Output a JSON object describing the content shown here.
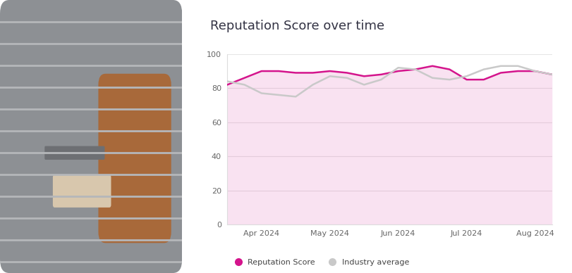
{
  "chart_data": {
    "type": "line",
    "title": "Reputation Score over time",
    "categories": [
      null,
      null,
      "Apr 2024",
      null,
      null,
      null,
      "May 2024",
      null,
      null,
      null,
      "Jun 2024",
      null,
      null,
      null,
      "Jul 2024",
      null,
      null,
      null,
      "Aug 2024",
      null
    ],
    "series": [
      {
        "name": "Reputation Score",
        "color": "#d4148c",
        "line_style": "solid",
        "values": [
          82,
          86,
          90,
          90,
          89,
          89,
          90,
          89,
          87,
          88,
          90,
          91,
          93,
          91,
          85,
          85,
          89,
          90,
          90,
          88
        ]
      },
      {
        "name": "Industry average",
        "color": "#c9c9c9",
        "line_style": "solid",
        "values": [
          84,
          82,
          77,
          76,
          75,
          82,
          87,
          86,
          82,
          85,
          92,
          91,
          86,
          85,
          87,
          91,
          93,
          93,
          90,
          88
        ]
      }
    ],
    "ylim": [
      0,
      100
    ],
    "yticks": [
      0,
      20,
      40,
      60,
      80,
      100
    ],
    "grid": true,
    "legend": "lower left"
  }
}
